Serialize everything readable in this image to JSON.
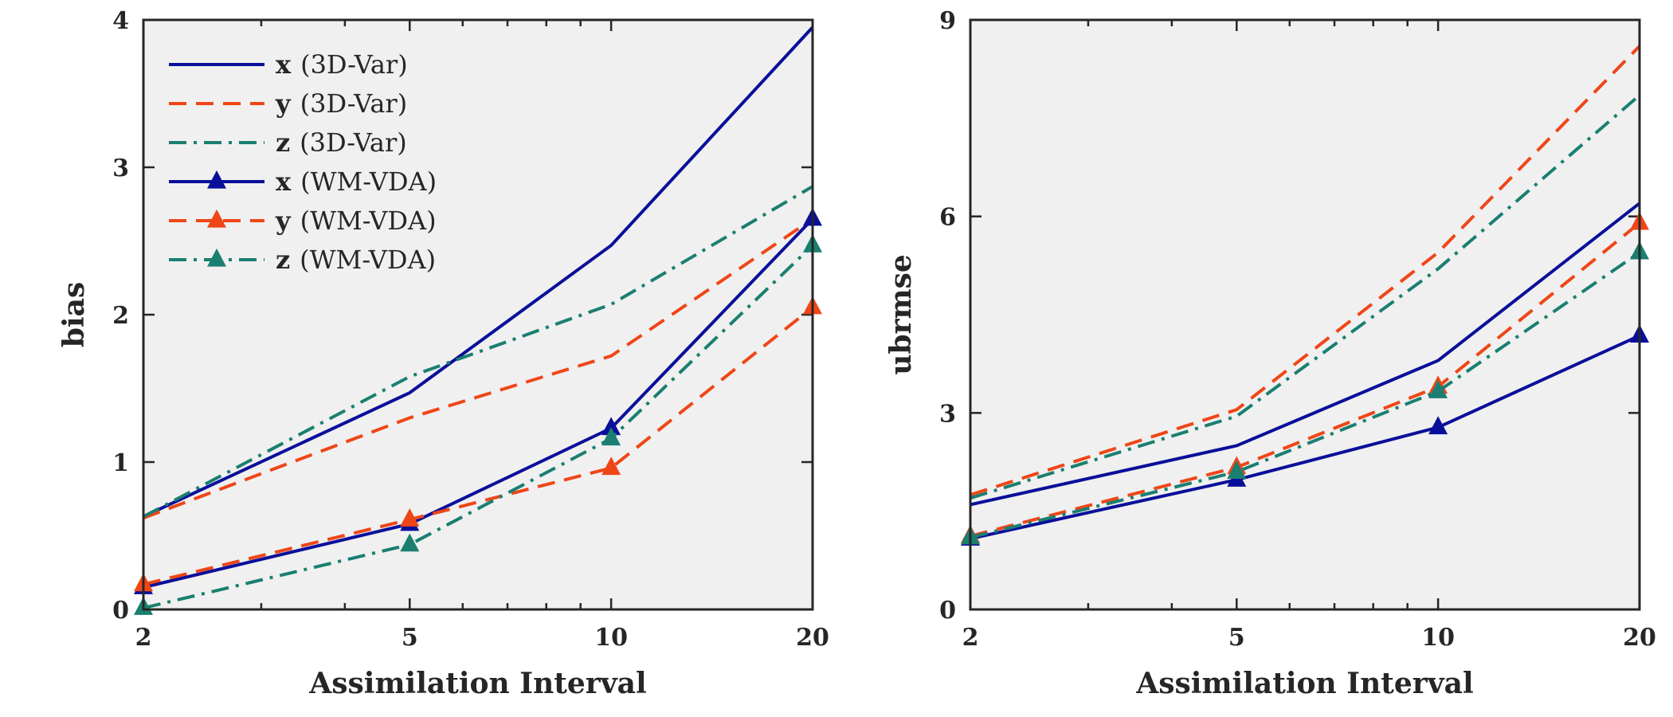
{
  "colors": {
    "x": "#0a0f9a",
    "y": "#ef4617",
    "z": "#1a7f70",
    "panel_bg": "#f0f0f0",
    "axis": "#262626"
  },
  "chart_data": [
    {
      "type": "line",
      "xscale": "log",
      "xlabel": "Assimilation Interval",
      "ylabel": "bias",
      "xlim": [
        2,
        20
      ],
      "ylim": [
        0,
        4
      ],
      "x": [
        2,
        5,
        10,
        20
      ],
      "xticks": [
        "2",
        "5",
        "10",
        "20"
      ],
      "yticks": [
        "0",
        "1",
        "2",
        "3",
        "4"
      ],
      "legend": "top-left",
      "grid": false,
      "series": [
        {
          "name": "x (3D-Var)",
          "var": "x",
          "method": "(3D-Var)",
          "color_key": "x",
          "style": "solid",
          "marker": "none",
          "values": [
            0.63,
            1.47,
            2.47,
            3.95
          ]
        },
        {
          "name": "y (3D-Var)",
          "var": "y",
          "method": "(3D-Var)",
          "color_key": "y",
          "style": "dashed",
          "marker": "none",
          "values": [
            0.62,
            1.3,
            1.72,
            2.65
          ]
        },
        {
          "name": "z (3D-Var)",
          "var": "z",
          "method": "(3D-Var)",
          "color_key": "z",
          "style": "dashdot",
          "marker": "none",
          "values": [
            0.63,
            1.58,
            2.07,
            2.87
          ]
        },
        {
          "name": "x (WM-VDA)",
          "var": "x",
          "method": "(WM-VDA)",
          "color_key": "x",
          "style": "solid",
          "marker": "triangle",
          "values": [
            0.15,
            0.58,
            1.23,
            2.65
          ]
        },
        {
          "name": "y (WM-VDA)",
          "var": "y",
          "method": "(WM-VDA)",
          "color_key": "y",
          "style": "dashed",
          "marker": "triangle",
          "values": [
            0.17,
            0.61,
            0.96,
            2.05
          ]
        },
        {
          "name": "z (WM-VDA)",
          "var": "z",
          "method": "(WM-VDA)",
          "color_key": "z",
          "style": "dashdot",
          "marker": "triangle",
          "values": [
            0.01,
            0.44,
            1.16,
            2.47
          ]
        }
      ]
    },
    {
      "type": "line",
      "xscale": "log",
      "xlabel": "Assimilation Interval",
      "ylabel": "ubrmse",
      "xlim": [
        2,
        20
      ],
      "ylim": [
        0,
        9
      ],
      "x": [
        2,
        5,
        10,
        20
      ],
      "xticks": [
        "2",
        "5",
        "10",
        "20"
      ],
      "yticks": [
        "0",
        "3",
        "6",
        "9"
      ],
      "legend": "none",
      "grid": false,
      "series": [
        {
          "name": "x (3D-Var)",
          "color_key": "x",
          "style": "solid",
          "marker": "none",
          "values": [
            1.6,
            2.5,
            3.8,
            6.2
          ]
        },
        {
          "name": "y (3D-Var)",
          "color_key": "y",
          "style": "dashed",
          "marker": "none",
          "values": [
            1.75,
            3.05,
            5.45,
            8.6
          ]
        },
        {
          "name": "z (3D-Var)",
          "color_key": "z",
          "style": "dashdot",
          "marker": "none",
          "values": [
            1.7,
            2.95,
            5.2,
            7.85
          ]
        },
        {
          "name": "x (WM-VDA)",
          "color_key": "x",
          "style": "solid",
          "marker": "triangle",
          "values": [
            1.08,
            1.98,
            2.78,
            4.18
          ]
        },
        {
          "name": "y (WM-VDA)",
          "color_key": "y",
          "style": "dashed",
          "marker": "triangle",
          "values": [
            1.12,
            2.17,
            3.4,
            5.9
          ]
        },
        {
          "name": "z (WM-VDA)",
          "color_key": "z",
          "style": "dashdot",
          "marker": "triangle",
          "values": [
            1.1,
            2.1,
            3.33,
            5.45
          ]
        }
      ]
    }
  ]
}
